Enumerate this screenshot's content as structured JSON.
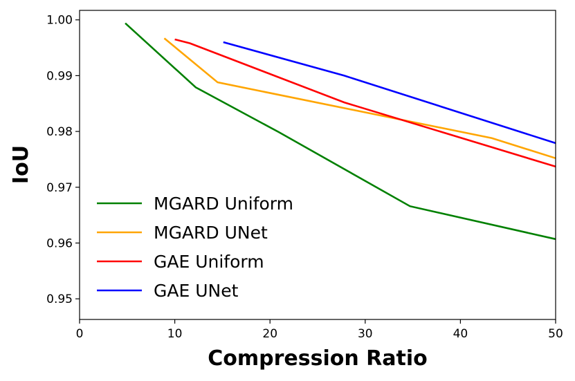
{
  "chart_data": {
    "type": "line",
    "xlabel": "Compression Ratio",
    "ylabel": "IoU",
    "xlim": [
      0,
      50
    ],
    "ylim": [
      0.9463,
      1.0017
    ],
    "xticks": [
      0,
      10,
      20,
      30,
      40,
      50
    ],
    "yticks": [
      0.95,
      0.96,
      0.97,
      0.98,
      0.99,
      {
        "value": 1,
        "label": "1.00"
      }
    ],
    "legend": "lower left",
    "grid": false,
    "series": [
      {
        "name": "MGARD Uniform",
        "color": "#008000",
        "x": [
          4.8,
          12.2,
          20.9,
          34.7,
          50
        ],
        "values": [
          0.9994,
          0.9879,
          0.9799,
          0.9666,
          0.9607
        ]
      },
      {
        "name": "MGARD UNet",
        "color": "#ffa500",
        "x": [
          8.9,
          14.5,
          43.3,
          50
        ],
        "values": [
          0.9967,
          0.9888,
          0.9788,
          0.9752
        ]
      },
      {
        "name": "GAE Uniform",
        "color": "#ff0000",
        "x": [
          10.0,
          11.6,
          27.8,
          50
        ],
        "values": [
          0.9965,
          0.9958,
          0.9852,
          0.9737
        ]
      },
      {
        "name": "GAE UNet",
        "color": "#0000ff",
        "x": [
          15.1,
          27.8,
          50
        ],
        "values": [
          0.996,
          0.99,
          0.9779
        ]
      }
    ]
  }
}
